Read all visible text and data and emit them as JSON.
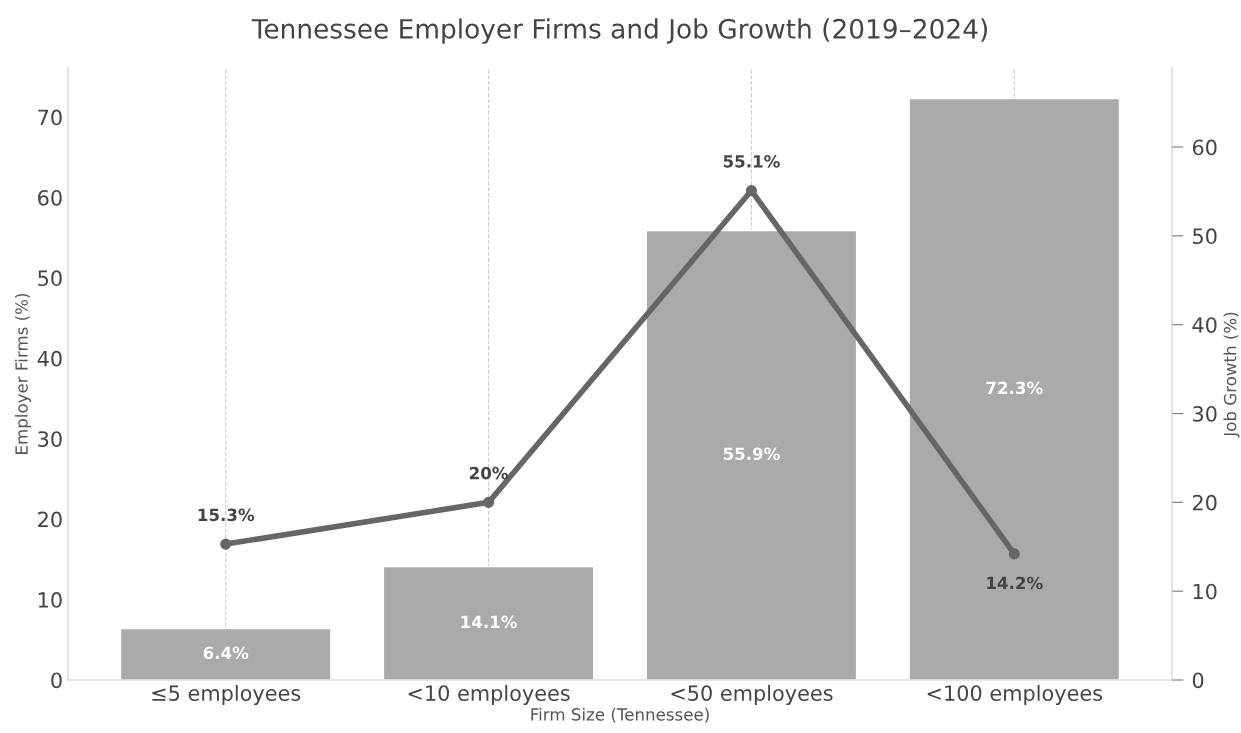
{
  "chart_data": {
    "type": "bar",
    "title": "Tennessee Employer Firms and Job Growth (2019–2024)",
    "xlabel": "Firm Size (Tennessee)",
    "ylabel": "Employer Firms (%)",
    "y2label": "Job Growth (%)",
    "categories": [
      "≤5 employees",
      "<10 employees",
      "<50 employees",
      "<100 employees"
    ],
    "series": [
      {
        "color": "#aaaaaa",
        "values": [
          6.4,
          14.1,
          55.9,
          72.3
        ],
        "value_labels": [
          "6.4%",
          "14.1%",
          "55.9%",
          "72.3%"
        ]
      },
      {
        "type": "line",
        "axis": "y2",
        "color": "#666666",
        "marker": "circle",
        "values": [
          15.3,
          20,
          55.1,
          14.2
        ],
        "value_labels": [
          "15.3%",
          "20%",
          "55.1%",
          "14.2%"
        ]
      }
    ],
    "ylim": [
      0,
      76.1
    ],
    "yticks": [
      0,
      10,
      20,
      30,
      40,
      50,
      60,
      70
    ],
    "y2lim": [
      0,
      68.9
    ],
    "y2ticks": [
      0,
      10,
      20,
      30,
      40,
      50,
      60
    ],
    "grid": "x",
    "legend": false
  }
}
